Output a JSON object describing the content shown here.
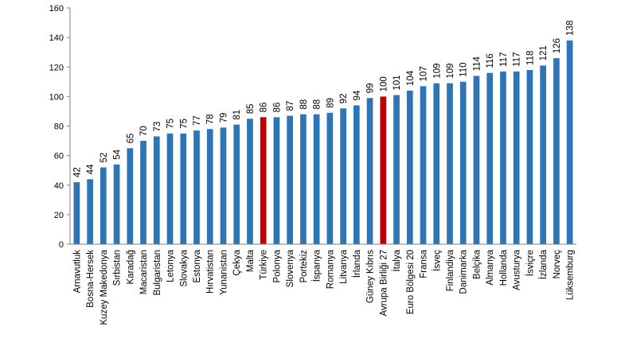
{
  "chart_data": {
    "type": "bar",
    "title": "",
    "xlabel": "",
    "ylabel": "",
    "ylim": [
      0,
      160
    ],
    "yticks": [
      0,
      20,
      40,
      60,
      80,
      100,
      120,
      140,
      160
    ],
    "grid": false,
    "legend": "none",
    "colors": {
      "default": "#2e75b6",
      "highlight": "#c00000"
    },
    "categories": [
      "Arnavutluk",
      "Bosna-Hersek",
      "Kuzey Makedonya",
      "Sırbistan",
      "Karadağ",
      "Macaristan",
      "Bulgaristan",
      "Letonya",
      "Slovakya",
      "Estonya",
      "Hırvatistan",
      "Yunanistan",
      "Çekya",
      "Malta",
      "Türkiye",
      "Polonya",
      "Slovenya",
      "Portekiz",
      "İspanya",
      "Romanya",
      "Litvanya",
      "İrlanda",
      "Güney Kıbrıs",
      "Avrupa Birliği 27",
      "İtalya",
      "Euro Bölgesi 20",
      "Fransa",
      "İsveç",
      "Finlandiya",
      "Danimarka",
      "Belçika",
      "Almanya",
      "Hollanda",
      "Avusturya",
      "İsviçre",
      "İzlanda",
      "Norveç",
      "Lüksemburg"
    ],
    "values": [
      42,
      44,
      52,
      54,
      65,
      70,
      73,
      75,
      75,
      77,
      78,
      79,
      81,
      85,
      86,
      86,
      87,
      88,
      88,
      89,
      92,
      94,
      99,
      100,
      101,
      104,
      107,
      109,
      109,
      110,
      114,
      116,
      117,
      117,
      118,
      121,
      126,
      138
    ],
    "highlighted": [
      "Türkiye",
      "Avrupa Birliği 27"
    ]
  }
}
